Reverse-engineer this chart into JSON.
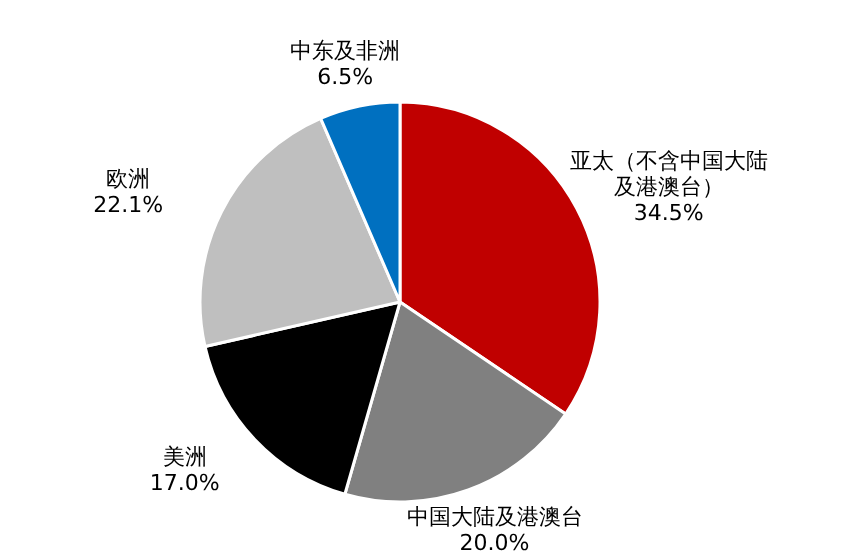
{
  "chart_data": {
    "type": "pie",
    "categories": [
      "亚太（不含中国大陆及港澳台）",
      "中国大陆及港澳台",
      "美洲",
      "欧洲",
      "中东及非洲"
    ],
    "values": [
      34.5,
      20.0,
      17.0,
      22.1,
      6.5
    ],
    "colors": [
      "#c00000",
      "#808080",
      "#000000",
      "#bfbfbf",
      "#0070c0"
    ],
    "value_labels": [
      "34.5%",
      "20.0%",
      "17.0%",
      "22.1%",
      "6.5%"
    ]
  }
}
